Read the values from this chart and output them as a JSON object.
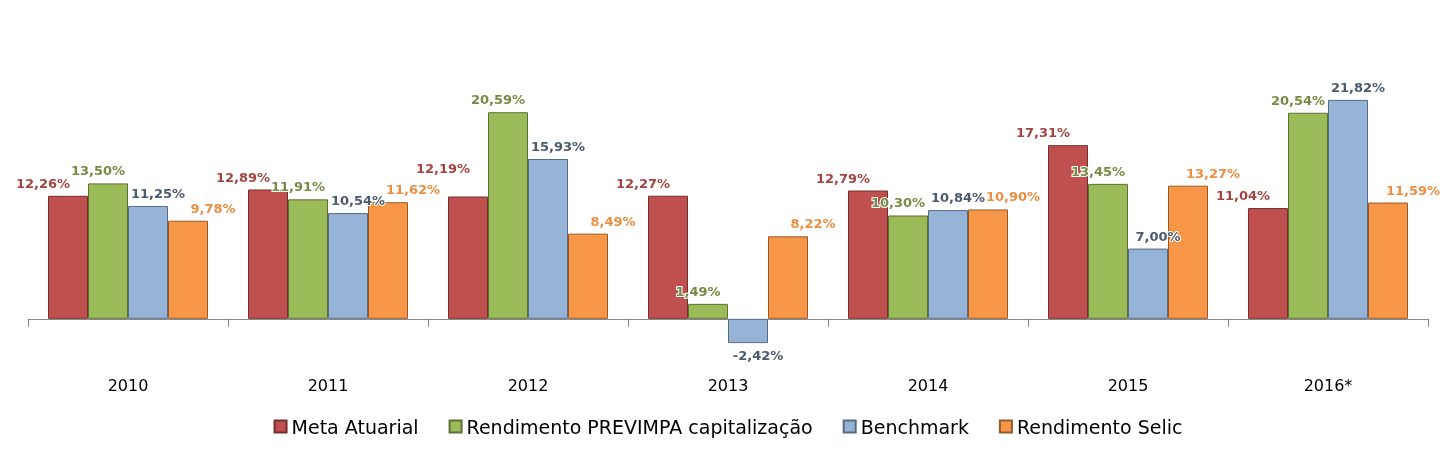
{
  "chart_data": {
    "type": "bar",
    "categories": [
      "2010",
      "2011",
      "2012",
      "2013",
      "2014",
      "2015",
      "2016*"
    ],
    "series": [
      {
        "name": "Meta Atuarial",
        "color": "#c0504d",
        "values": [
          12.26,
          12.89,
          12.19,
          12.27,
          12.79,
          17.31,
          11.04
        ],
        "value_labels": [
          "12,26%",
          "12,89%",
          "12,19%",
          "12,27%",
          "12,79%",
          "17,31%",
          "11,04%"
        ]
      },
      {
        "name": "Rendimento PREVIMPA capitalização",
        "color": "#9bbb59",
        "values": [
          13.5,
          11.91,
          20.59,
          1.49,
          10.3,
          13.45,
          20.54
        ],
        "value_labels": [
          "13,50%",
          "11,91%",
          "20,59%",
          "1,49%",
          "10,30%",
          "13,45%",
          "20,54%"
        ]
      },
      {
        "name": "Benchmark",
        "color": "#95b3d7",
        "values": [
          11.25,
          10.54,
          15.93,
          -2.42,
          10.84,
          7.0,
          21.82
        ],
        "value_labels": [
          "11,25%",
          "10,54%",
          "15,93%",
          "-2,42%",
          "10,84%",
          "7,00%",
          "21,82%"
        ]
      },
      {
        "name": "Rendimento Selic",
        "color": "#f79646",
        "values": [
          9.78,
          11.62,
          8.49,
          8.22,
          10.9,
          13.27,
          11.59
        ],
        "value_labels": [
          "9,78%",
          "11,62%",
          "8,49%",
          "8,22%",
          "10,90%",
          "13,27%",
          "11,59%"
        ]
      }
    ],
    "legend": "bottom"
  }
}
